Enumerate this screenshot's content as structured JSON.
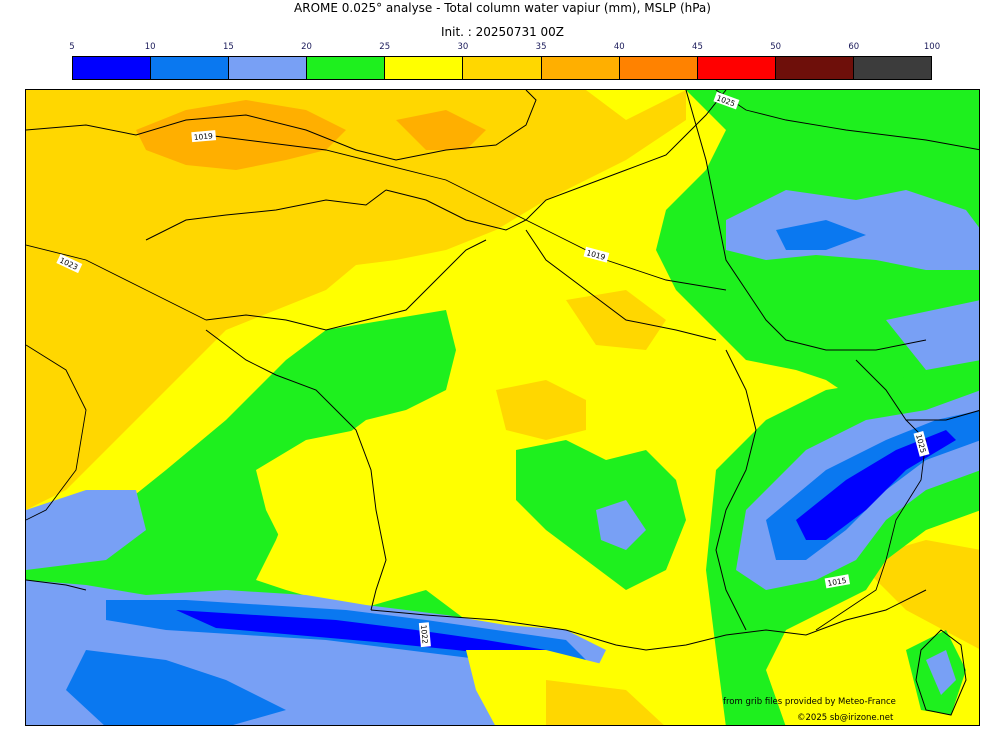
{
  "title": "AROME 0.025° analyse - Total column water vapiur (mm), MSLP (hPa)",
  "subtitle": "Init. : 20250731 00Z",
  "colorbar": {
    "ticks": [
      "5",
      "10",
      "15",
      "20",
      "25",
      "30",
      "35",
      "40",
      "45",
      "50",
      "60",
      "100"
    ],
    "colors": [
      "#0000ff",
      "#0a78f0",
      "#78a0f5",
      "#1ef01e",
      "#ffff00",
      "#ffd700",
      "#ffaf00",
      "#ff8200",
      "#ff0000",
      "#6e0f0a",
      "#3c3c3c"
    ]
  },
  "isobar_labels": [
    "1019",
    "1023",
    "1019",
    "1025",
    "1015",
    "1022",
    "1025",
    "1019"
  ],
  "credits": {
    "source": "from grib files provided by Meteo-France",
    "copyright": "©2025 sb@irizone.net"
  }
}
